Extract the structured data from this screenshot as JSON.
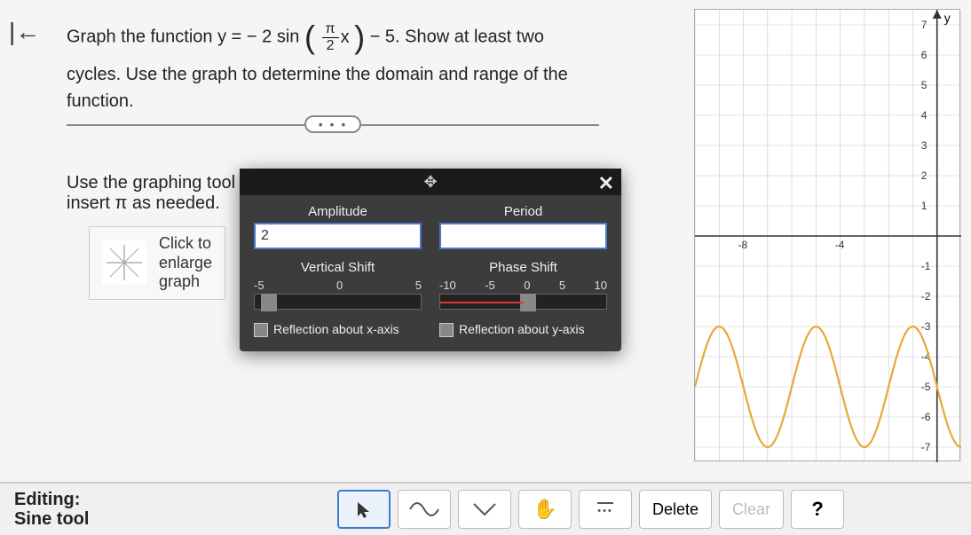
{
  "back_icon": "|←",
  "question": {
    "pre": "Graph the function y = − 2 sin ",
    "frac_num": "π",
    "frac_mid": "x",
    "frac_den": "2",
    "post": " − 5. Show at least two",
    "line2": "cycles. Use the graph to determine the domain and range of the function."
  },
  "ellipsis": "• • •",
  "prompt2_line1": "Use the graphing tool to",
  "prompt2_line2": "insert π as needed.",
  "enlarge": {
    "l1": "Click to",
    "l2": "enlarge",
    "l3": "graph"
  },
  "modal": {
    "amplitude_label": "Amplitude",
    "period_label": "Period",
    "amplitude_value": "2",
    "period_value": "",
    "vshift_label": "Vertical Shift",
    "pshift_label": "Phase Shift",
    "vshift_ticks": [
      "-5",
      "0",
      "5"
    ],
    "pshift_ticks": [
      "-10",
      "-5",
      "0",
      "5",
      "10"
    ],
    "vshift_handle_pct": 4,
    "pshift_handle_pct": 48,
    "reflect_x": "Reflection about x-axis",
    "reflect_y": "Reflection about y-axis"
  },
  "graph": {
    "y_label": "y",
    "y_ticks": [
      7,
      6,
      5,
      4,
      3,
      2,
      1,
      -1,
      -2,
      -3,
      -4,
      -5,
      -6,
      -7
    ],
    "x_ticks": [
      -8,
      -4
    ],
    "curve": {
      "amplitude": 2,
      "vshift": -5,
      "period": 4,
      "color": "#e8a838",
      "axis_color": "#333",
      "grid_color": "#c8c8c8",
      "xlim": [
        -10,
        1
      ],
      "ylim": [
        -7.5,
        7.5
      ]
    }
  },
  "toolbar": {
    "editing_label": "Editing:",
    "editing_tool": "Sine tool",
    "delete": "Delete",
    "clear": "Clear",
    "help": "?",
    "more": "—\n•••"
  }
}
